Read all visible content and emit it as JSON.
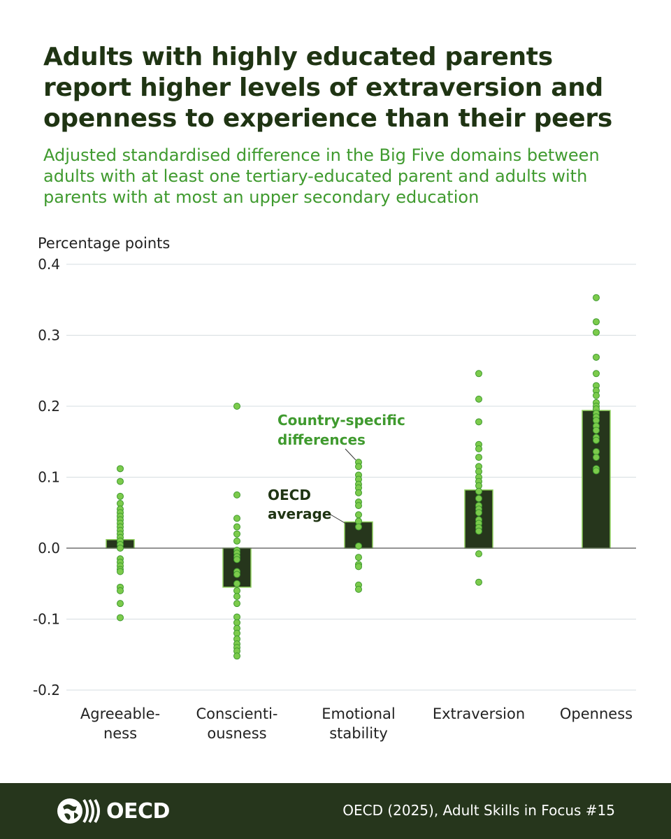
{
  "header": {
    "title": "Adults with highly educated parents report higher levels of extraversion and openness to experience than their peers",
    "subtitle": "Adjusted standardised difference in the Big Five domains between adults with at least one tertiary-educated parent and adults with parents with at most an upper secondary education"
  },
  "footer": {
    "logo_text": "OECD",
    "source": "OECD (2025), Adult Skills in Focus #15"
  },
  "colors": {
    "bar_fill": "#26361c",
    "bar_stroke": "#8ccd5a",
    "dot_fill": "#7ccb4c",
    "dot_stroke": "#3f9a2e",
    "annotation_green": "#3f9a2e",
    "annotation_dark": "#1f3413",
    "footer_bg": "#26361c"
  },
  "chart_data": {
    "type": "bar",
    "ylabel": "Percentage points",
    "ylim": [
      -0.2,
      0.4
    ],
    "yticks": [
      "0.4",
      "0.3",
      "0.2",
      "0.1",
      "0.0",
      "-0.1",
      "-0.2"
    ],
    "ytick_values": [
      0.4,
      0.3,
      0.2,
      0.1,
      0.0,
      -0.1,
      -0.2
    ],
    "grid": true,
    "categories": [
      [
        "Agreeable-",
        "ness"
      ],
      [
        "Conscienti-",
        "ousness"
      ],
      [
        "Emotional",
        "stability"
      ],
      [
        "Extraversion"
      ],
      [
        "Openness"
      ]
    ],
    "series": [
      {
        "name": "OECD average",
        "values": [
          0.012,
          -0.055,
          0.037,
          0.082,
          0.194
        ]
      }
    ],
    "country_points": [
      [
        0.112,
        0.094,
        0.073,
        0.063,
        0.055,
        0.05,
        0.045,
        0.04,
        0.035,
        0.03,
        0.025,
        0.02,
        0.015,
        0.01,
        0.005,
        0.0,
        -0.015,
        -0.02,
        -0.025,
        -0.03,
        -0.033,
        -0.055,
        -0.06,
        -0.078,
        -0.098
      ],
      [
        0.2,
        0.075,
        0.042,
        0.03,
        0.02,
        0.01,
        -0.003,
        -0.007,
        -0.012,
        -0.016,
        -0.033,
        -0.037,
        -0.05,
        -0.06,
        -0.068,
        -0.078,
        -0.097,
        -0.105,
        -0.113,
        -0.12,
        -0.128,
        -0.135,
        -0.14,
        -0.145,
        -0.152
      ],
      [
        0.121,
        0.115,
        0.103,
        0.097,
        0.09,
        0.085,
        0.078,
        0.065,
        0.06,
        0.047,
        0.038,
        0.03,
        0.003,
        -0.013,
        -0.023,
        -0.026,
        -0.052,
        -0.058
      ],
      [
        0.246,
        0.21,
        0.178,
        0.146,
        0.14,
        0.128,
        0.115,
        0.108,
        0.1,
        0.094,
        0.088,
        0.08,
        0.07,
        0.06,
        0.055,
        0.05,
        0.04,
        0.035,
        0.029,
        0.024,
        -0.008,
        -0.048
      ],
      [
        0.353,
        0.319,
        0.304,
        0.269,
        0.246,
        0.229,
        0.222,
        0.215,
        0.205,
        0.2,
        0.196,
        0.19,
        0.185,
        0.18,
        0.172,
        0.166,
        0.156,
        0.152,
        0.136,
        0.128,
        0.112,
        0.109
      ]
    ],
    "annotations": {
      "country": [
        "Country-specific",
        "differences"
      ],
      "oecd": [
        "OECD",
        "average"
      ]
    }
  }
}
